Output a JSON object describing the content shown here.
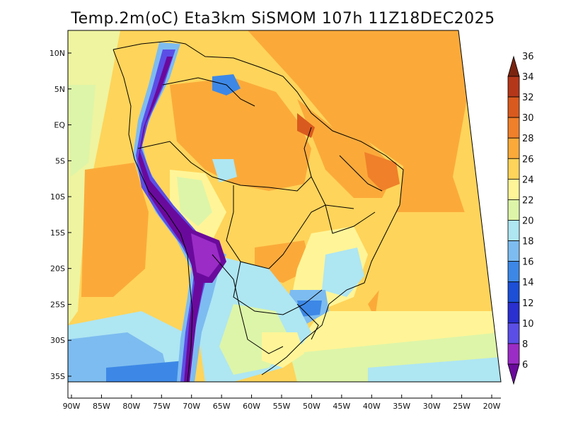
{
  "title": "Temp.2m(oC) Eta3km SiSMOM 107h 11Z18DEC2025",
  "map": {
    "lat_labels": [
      "10N",
      "5N",
      "EQ",
      "5S",
      "10S",
      "15S",
      "20S",
      "25S",
      "30S",
      "35S"
    ],
    "lat_values": [
      10,
      5,
      0,
      -5,
      -10,
      -15,
      -20,
      -25,
      -30,
      -35
    ],
    "lon_labels": [
      "90W",
      "85W",
      "80W",
      "75W",
      "70W",
      "65W",
      "60W",
      "55W",
      "50W",
      "45W",
      "40W",
      "35W",
      "30W",
      "25W",
      "20W"
    ],
    "lon_values": [
      -90,
      -85,
      -80,
      -75,
      -70,
      -65,
      -60,
      -55,
      -50,
      -45,
      -40,
      -35,
      -30,
      -25,
      -20
    ]
  },
  "colorbar": {
    "levels": [
      "6",
      "8",
      "10",
      "12",
      "14",
      "16",
      "18",
      "20",
      "22",
      "24",
      "26",
      "28",
      "30",
      "32",
      "34",
      "36"
    ],
    "colors": [
      "#6a0a9c",
      "#9b2cc6",
      "#5b4ee6",
      "#2a2fd0",
      "#1c4fd6",
      "#3d88e6",
      "#7dbcf0",
      "#aee6f2",
      "#ddf5a8",
      "#fff598",
      "#ffd45a",
      "#fbaa3a",
      "#f0802a",
      "#d95a1e",
      "#b5371a",
      "#7a2410"
    ]
  }
}
